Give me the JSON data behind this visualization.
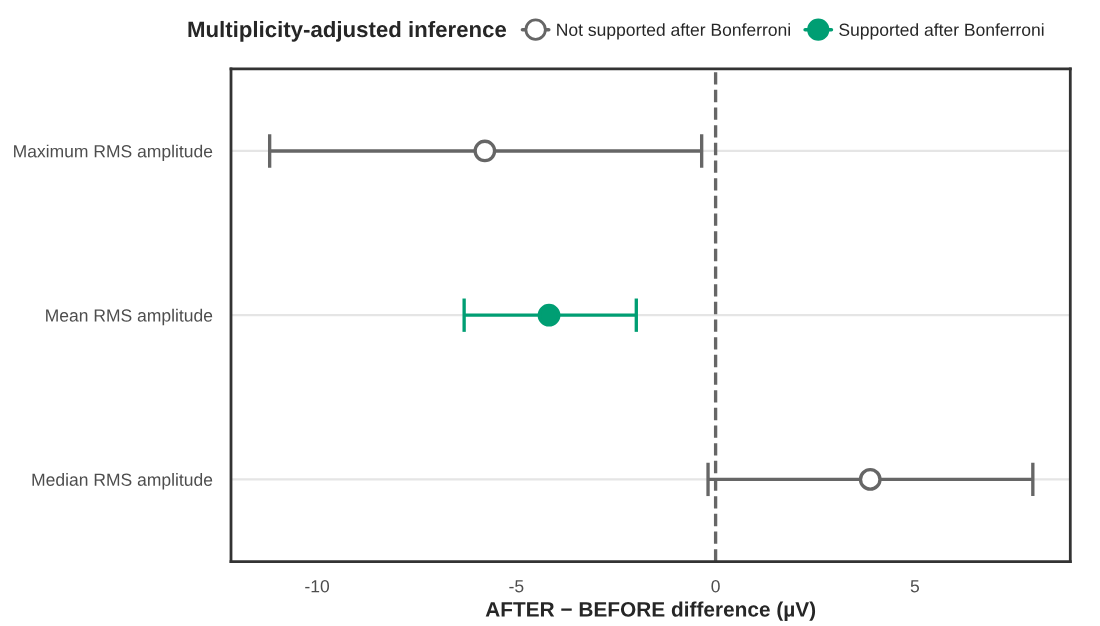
{
  "chart_data": {
    "type": "scatter",
    "orientation": "horizontal",
    "legend_title": "Multiplicity-adjusted inference",
    "xlabel": "AFTER − BEFORE difference (µV)",
    "categories": [
      "Maximum RMS amplitude",
      "Mean RMS amplitude",
      "Median RMS amplitude"
    ],
    "series": [
      {
        "name": "Not supported after Bonferroni",
        "color": "#666666",
        "values": [
          -5.79,
          null,
          3.88
        ],
        "errors": [
          [
            -11.19,
            -0.35
          ],
          null,
          [
            -0.19,
            7.96
          ]
        ]
      },
      {
        "name": "Supported after Bonferroni",
        "color": "#009e73",
        "values": [
          null,
          -4.18,
          null
        ],
        "errors": [
          null,
          [
            -6.31,
            -1.99
          ],
          null
        ]
      }
    ],
    "xlim": [
      -12.16,
      8.9
    ],
    "xticks": [
      -10,
      -5,
      0,
      5
    ],
    "ref_lines": [
      {
        "axis": "x",
        "value": 0,
        "color": "#666666",
        "line_style": "dashed"
      }
    ],
    "grid": "y",
    "legend": "top",
    "marker": "circle"
  }
}
